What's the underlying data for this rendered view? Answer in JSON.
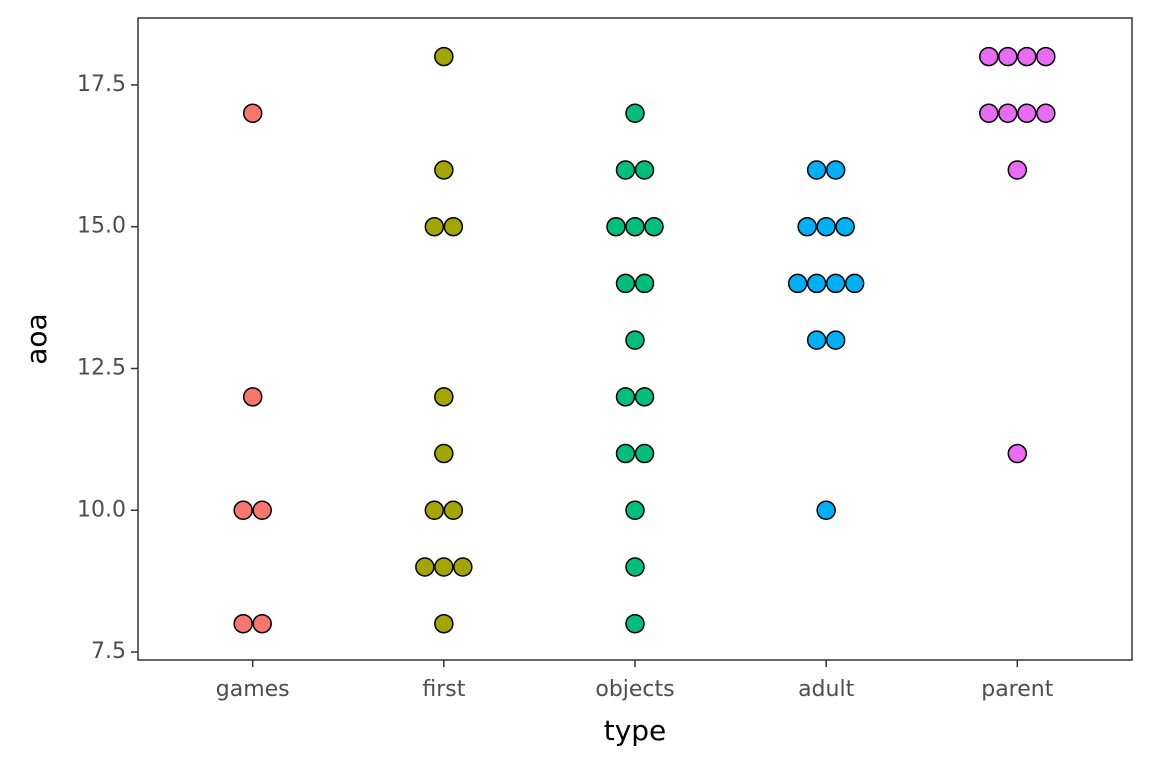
{
  "chart_data": {
    "type": "dotplot",
    "x_label": "type",
    "y_label": "aoa",
    "categories": [
      "games",
      "first",
      "objects",
      "adult",
      "parent"
    ],
    "values": [
      [
        8,
        8,
        10,
        10,
        12,
        17
      ],
      [
        8,
        9,
        9,
        9,
        10,
        10,
        11,
        12,
        15,
        15,
        16,
        18
      ],
      [
        8,
        9,
        10,
        11,
        11,
        12,
        12,
        13,
        14,
        14,
        15,
        15,
        15,
        16,
        16,
        17
      ],
      [
        10,
        13,
        13,
        14,
        14,
        14,
        14,
        15,
        15,
        15,
        16,
        16
      ],
      [
        11,
        16,
        17,
        17,
        17,
        17,
        18,
        18,
        18,
        18
      ]
    ],
    "colors": [
      "#F8766D",
      "#A3A500",
      "#00BF7D",
      "#00B0F6",
      "#E76BF3"
    ],
    "ylim": [
      7.36,
      18.68
    ],
    "yticks": [
      7.5,
      {
        "value": 10,
        "label": "10.0"
      },
      12.5,
      {
        "value": 15,
        "label": "15.0"
      },
      17.5
    ],
    "grid": false
  }
}
